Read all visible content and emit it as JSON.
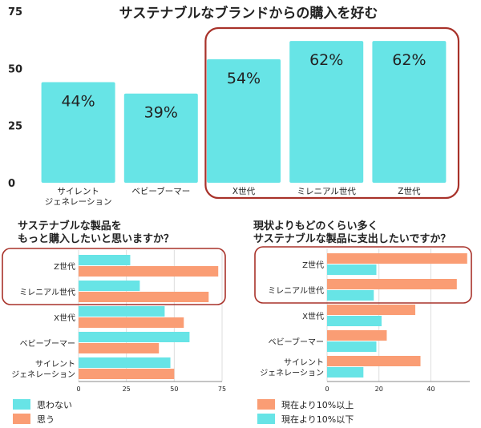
{
  "colors": {
    "cyan": "#67E4E6",
    "orange": "#FA9D74",
    "highlight": "#A8322A",
    "axis": "#222222",
    "grid": "#DDDDDD"
  },
  "chart_data": [
    {
      "type": "bar",
      "title": "サステナブルなブランドからの購入を好む",
      "categories": [
        [
          "サイレント",
          "ジェネレーション"
        ],
        [
          "ベビーブーマー"
        ],
        [
          "X世代"
        ],
        [
          "ミレニアル世代"
        ],
        [
          "Z世代"
        ]
      ],
      "values": [
        44,
        39,
        54,
        62,
        62
      ],
      "value_labels": [
        "44%",
        "39%",
        "54%",
        "62%",
        "62%"
      ],
      "ylim": [
        0,
        75
      ],
      "yticks": [
        "0",
        "25",
        "50",
        "75"
      ],
      "grid": false,
      "highlighted_categories": [
        "X世代",
        "ミレニアル世代",
        "Z世代"
      ]
    },
    {
      "type": "bar",
      "orientation": "horizontal",
      "title": [
        "サステナブルな製品を",
        "もっと購入したいと思いますか？"
      ],
      "categories": [
        [
          "Z世代"
        ],
        [
          "ミレニアル世代"
        ],
        [
          "X世代"
        ],
        [
          "ベビーブーマー"
        ],
        [
          "サイレント",
          "ジェネレーション"
        ]
      ],
      "series": [
        {
          "name": "思わない",
          "color": "#67E4E6",
          "values": [
            27,
            32,
            45,
            58,
            48
          ]
        },
        {
          "name": "思う",
          "color": "#FA9D74",
          "values": [
            73,
            68,
            55,
            42,
            50
          ]
        }
      ],
      "xlim": [
        0,
        75
      ],
      "xticks": [
        "0",
        "25",
        "50",
        "75"
      ],
      "grid": true,
      "legend": "bottom-left",
      "highlighted_categories": [
        "Z世代",
        "ミレニアル世代"
      ]
    },
    {
      "type": "bar",
      "orientation": "horizontal",
      "title": [
        "現状よりもどのくらい多く",
        "サステナブルな製品に支出したいですか？"
      ],
      "categories": [
        [
          "Z世代"
        ],
        [
          "ミレニアル世代"
        ],
        [
          "X世代"
        ],
        [
          "ベビーブーマー"
        ],
        [
          "サイレント",
          "ジェネレーション"
        ]
      ],
      "series": [
        {
          "name": "現在より10%以上",
          "color": "#FA9D74",
          "values": [
            54,
            50,
            34,
            23,
            36
          ]
        },
        {
          "name": "現在より10%以下",
          "color": "#67E4E6",
          "values": [
            19,
            18,
            21,
            19,
            14
          ]
        }
      ],
      "xlim": [
        0,
        55
      ],
      "xticks": [
        "0",
        "20",
        "40"
      ],
      "xtick_values": [
        0,
        20,
        40
      ],
      "grid": true,
      "legend": "bottom-left",
      "highlighted_categories": [
        "Z世代",
        "ミレニアル世代"
      ]
    }
  ]
}
